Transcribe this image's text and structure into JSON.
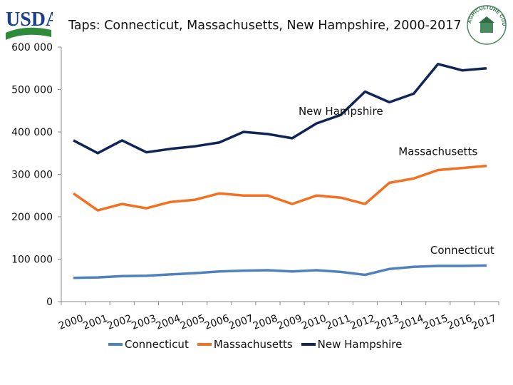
{
  "logos": {
    "usda": "USDA",
    "seal": "AGRICULTURE COUNTS"
  },
  "chart_data": {
    "type": "line",
    "title": "Taps: Connecticut, Massachusetts, New Hampshire, 2000-2017",
    "xlabel": "",
    "ylabel": "",
    "ylim": [
      0,
      600000
    ],
    "yticks": [
      0,
      100000,
      200000,
      300000,
      400000,
      500000,
      600000
    ],
    "ytick_labels": [
      "0",
      "100 000",
      "200 000",
      "300 000",
      "400 000",
      "500 000",
      "600 000"
    ],
    "categories": [
      "2000",
      "2001",
      "2002",
      "2003",
      "2004",
      "2005",
      "2006",
      "2007",
      "2008",
      "2009",
      "2010",
      "2011",
      "2012",
      "2013",
      "2014",
      "2015",
      "2016",
      "2017"
    ],
    "grid": false,
    "legend_position": "bottom",
    "series": [
      {
        "name": "Connecticut",
        "color": "#4F81BD",
        "values": [
          56000,
          57000,
          60000,
          61000,
          64000,
          67000,
          71000,
          73000,
          74000,
          71000,
          74000,
          70000,
          63000,
          77000,
          82000,
          84000,
          84000,
          85000
        ]
      },
      {
        "name": "Massachusetts",
        "color": "#F37021",
        "values": [
          255000,
          215000,
          230000,
          220000,
          235000,
          240000,
          255000,
          250000,
          250000,
          230000,
          250000,
          245000,
          230000,
          280000,
          290000,
          310000,
          315000,
          320000
        ]
      },
      {
        "name": "New Hampshire",
        "color": "#0F2557",
        "values": [
          380000,
          350000,
          380000,
          352000,
          360000,
          366000,
          375000,
          400000,
          395000,
          385000,
          420000,
          440000,
          495000,
          470000,
          490000,
          560000,
          545000,
          550000
        ]
      }
    ],
    "annotations": [
      {
        "text": "New Hampshire",
        "series": "New Hampshire"
      },
      {
        "text": "Massachusetts",
        "series": "Massachusetts"
      },
      {
        "text": "Connecticut",
        "series": "Connecticut"
      }
    ]
  }
}
